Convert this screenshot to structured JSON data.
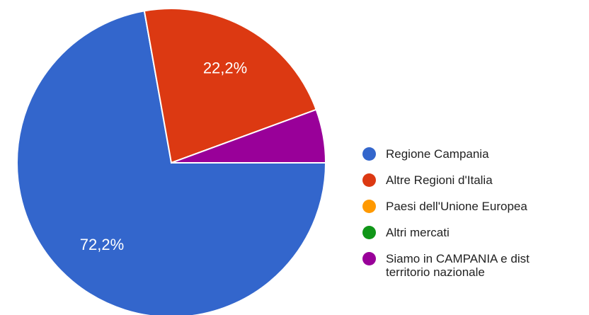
{
  "chart_data": {
    "type": "pie",
    "categories": [
      "Regione Campania",
      "Altre Regioni d'Italia",
      "Paesi dell'Unione Europea",
      "Altri mercati",
      "Siamo in CAMPANIA e dist territorio nazionale"
    ],
    "values": [
      72.2,
      22.2,
      0,
      0,
      5.6
    ],
    "value_labels": [
      "72,2%",
      "22,2%",
      null,
      null,
      null
    ],
    "colors": [
      "#3366cc",
      "#dc3912",
      "#ff9900",
      "#109618",
      "#990099"
    ]
  }
}
